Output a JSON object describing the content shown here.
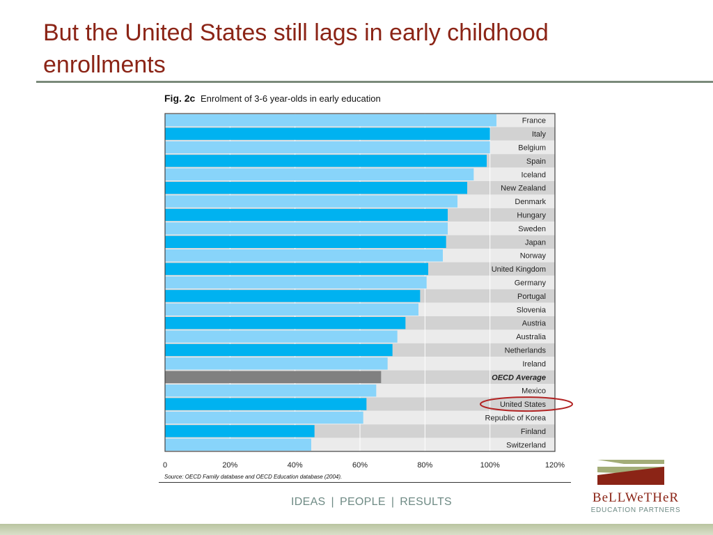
{
  "slide": {
    "title": "But the United States still lags in early childhood enrollments"
  },
  "figure": {
    "number": "Fig. 2c",
    "caption": "Enrolment of 3-6 year-olds in early education",
    "source": "Source: OECD Family database and OECD Education database (2004)."
  },
  "chart_data": {
    "type": "bar",
    "orientation": "horizontal",
    "x_ticks": [
      "0",
      "20%",
      "40%",
      "60%",
      "80%",
      "100%",
      "120%"
    ],
    "xlim": [
      0,
      120
    ],
    "categories": [
      "France",
      "Italy",
      "Belgium",
      "Spain",
      "Iceland",
      "New Zealand",
      "Denmark",
      "Hungary",
      "Sweden",
      "Japan",
      "Norway",
      "United Kingdom",
      "Germany",
      "Portugal",
      "Slovenia",
      "Austria",
      "Australia",
      "Netherlands",
      "Ireland",
      "OECD Average",
      "Mexico",
      "United States",
      "Republic of Korea",
      "Finland",
      "Switzerland"
    ],
    "values": [
      102,
      100,
      100,
      99,
      95,
      93,
      90,
      87,
      87,
      86.5,
      85.5,
      81,
      80.5,
      78.5,
      78,
      74,
      71.5,
      70,
      68.5,
      66.5,
      65,
      62,
      61,
      46,
      45
    ],
    "highlight": {
      "category": "OECD Average",
      "color": "#808080",
      "label_style": "bold-italic"
    },
    "annotation": {
      "category": "United States",
      "shape": "ellipse",
      "color": "#b22222"
    },
    "colors": {
      "bar_dark": "#00b2f0",
      "bar_light": "#88d4fa",
      "row_light": "#ebebeb",
      "row_dark": "#d2d2d2"
    },
    "grid": true
  },
  "tagline": {
    "ideas": "IDEAS",
    "people": "PEOPLE",
    "results": "RESULTS",
    "separator": "|"
  },
  "logo": {
    "name": "BeLLWeTHeR",
    "subtitle": "EDUCATION PARTNERS"
  }
}
